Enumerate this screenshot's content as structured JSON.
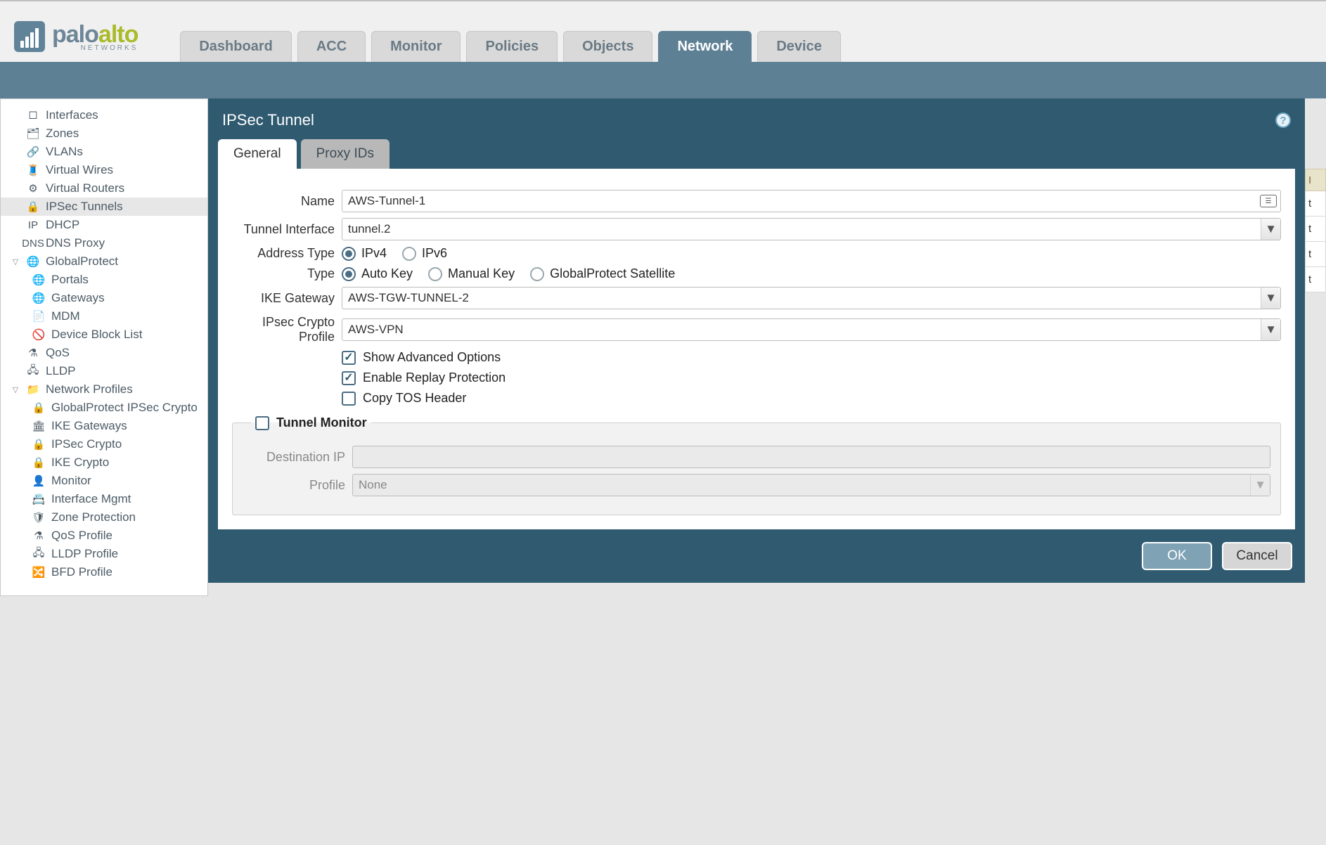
{
  "brand": {
    "name1": "palo",
    "name2": "alto",
    "sub": "NETWORKS"
  },
  "topTabs": [
    {
      "label": "Dashboard",
      "active": false
    },
    {
      "label": "ACC",
      "active": false
    },
    {
      "label": "Monitor",
      "active": false
    },
    {
      "label": "Policies",
      "active": false
    },
    {
      "label": "Objects",
      "active": false
    },
    {
      "label": "Network",
      "active": true
    },
    {
      "label": "Device",
      "active": false
    }
  ],
  "sidebar": {
    "items": [
      {
        "label": "Interfaces",
        "depth": 1,
        "icon": "🞏",
        "selected": false
      },
      {
        "label": "Zones",
        "depth": 1,
        "icon": "🗂",
        "selected": false
      },
      {
        "label": "VLANs",
        "depth": 1,
        "icon": "🔗",
        "selected": false
      },
      {
        "label": "Virtual Wires",
        "depth": 1,
        "icon": "🧵",
        "selected": false
      },
      {
        "label": "Virtual Routers",
        "depth": 1,
        "icon": "⚙",
        "selected": false
      },
      {
        "label": "IPSec Tunnels",
        "depth": 1,
        "icon": "🔒",
        "selected": true
      },
      {
        "label": "DHCP",
        "depth": 1,
        "icon": "IP",
        "selected": false
      },
      {
        "label": "DNS Proxy",
        "depth": 1,
        "icon": "DNS",
        "selected": false
      },
      {
        "label": "GlobalProtect",
        "depth": 1,
        "icon": "🌐",
        "expand": "▽",
        "selected": false
      },
      {
        "label": "Portals",
        "depth": 2,
        "icon": "🌐",
        "selected": false
      },
      {
        "label": "Gateways",
        "depth": 2,
        "icon": "🌐",
        "selected": false
      },
      {
        "label": "MDM",
        "depth": 2,
        "icon": "📄",
        "selected": false
      },
      {
        "label": "Device Block List",
        "depth": 2,
        "icon": "🚫",
        "selected": false
      },
      {
        "label": "QoS",
        "depth": 1,
        "icon": "⚗",
        "selected": false
      },
      {
        "label": "LLDP",
        "depth": 1,
        "icon": "🖧",
        "selected": false
      },
      {
        "label": "Network Profiles",
        "depth": 1,
        "icon": "📁",
        "expand": "▽",
        "selected": false
      },
      {
        "label": "GlobalProtect IPSec Crypto",
        "depth": 2,
        "icon": "🔒",
        "selected": false
      },
      {
        "label": "IKE Gateways",
        "depth": 2,
        "icon": "🏛",
        "selected": false
      },
      {
        "label": "IPSec Crypto",
        "depth": 2,
        "icon": "🔒",
        "selected": false
      },
      {
        "label": "IKE Crypto",
        "depth": 2,
        "icon": "🔒",
        "selected": false
      },
      {
        "label": "Monitor",
        "depth": 2,
        "icon": "👤",
        "selected": false
      },
      {
        "label": "Interface Mgmt",
        "depth": 2,
        "icon": "📇",
        "selected": false
      },
      {
        "label": "Zone Protection",
        "depth": 2,
        "icon": "🛡",
        "selected": false
      },
      {
        "label": "QoS Profile",
        "depth": 2,
        "icon": "⚗",
        "selected": false
      },
      {
        "label": "LLDP Profile",
        "depth": 2,
        "icon": "🖧",
        "selected": false
      },
      {
        "label": "BFD Profile",
        "depth": 2,
        "icon": "🔀",
        "selected": false
      }
    ]
  },
  "rightPeek": {
    "header": "I",
    "rows": [
      "t",
      "t",
      "t",
      "t"
    ]
  },
  "dialog": {
    "title": "IPSec Tunnel",
    "tabs": [
      {
        "label": "General",
        "active": true
      },
      {
        "label": "Proxy IDs",
        "active": false
      }
    ],
    "fields": {
      "name": {
        "label": "Name",
        "value": "AWS-Tunnel-1"
      },
      "tunnelInterface": {
        "label": "Tunnel Interface",
        "value": "tunnel.2"
      },
      "addressType": {
        "label": "Address Type",
        "options": [
          "IPv4",
          "IPv6"
        ],
        "selected": "IPv4"
      },
      "type": {
        "label": "Type",
        "options": [
          "Auto Key",
          "Manual Key",
          "GlobalProtect Satellite"
        ],
        "selected": "Auto Key"
      },
      "ikeGateway": {
        "label": "IKE Gateway",
        "value": "AWS-TGW-TUNNEL-2"
      },
      "ipsecCrypto": {
        "label": "IPsec Crypto Profile",
        "value": "AWS-VPN"
      },
      "showAdvanced": {
        "label": "Show Advanced Options",
        "checked": true
      },
      "replayProtection": {
        "label": "Enable Replay Protection",
        "checked": true
      },
      "copyTOS": {
        "label": "Copy TOS Header",
        "checked": false
      }
    },
    "tunnelMonitor": {
      "legend": "Tunnel Monitor",
      "enabled": false,
      "destIP": {
        "label": "Destination IP",
        "value": ""
      },
      "profile": {
        "label": "Profile",
        "value": "None"
      }
    },
    "actions": {
      "ok": "OK",
      "cancel": "Cancel"
    }
  },
  "colors": {
    "brandBlue": "#5e8095",
    "dialogBg": "#2f5a70",
    "accentGreen": "#aabb2a"
  }
}
